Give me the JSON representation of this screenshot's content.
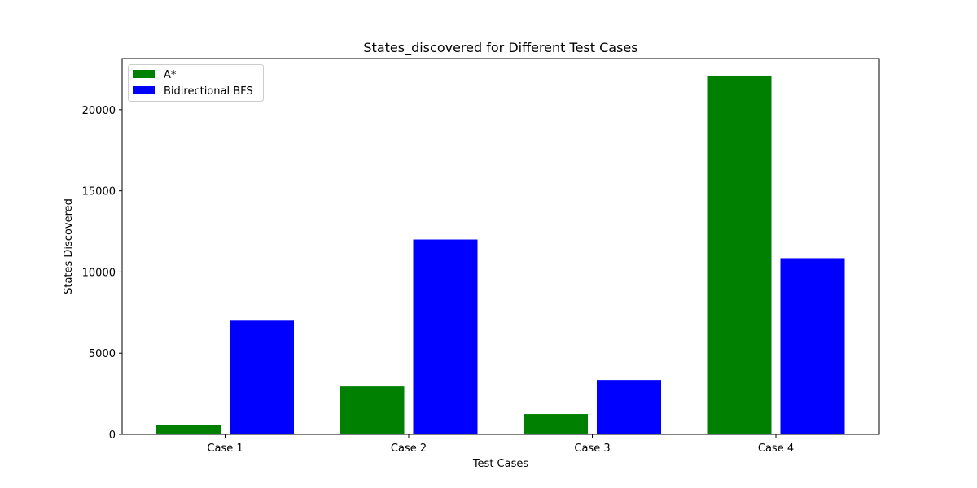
{
  "chart_data": {
    "type": "bar",
    "title": "States_discovered for Different Test Cases",
    "xlabel": "Test Cases",
    "ylabel": "States Discovered",
    "categories": [
      "Case 1",
      "Case 2",
      "Case 3",
      "Case 4"
    ],
    "series": [
      {
        "name": "A*",
        "color": "#008000",
        "values": [
          600,
          2950,
          1250,
          22100
        ]
      },
      {
        "name": "Bidirectional BFS",
        "color": "#0000ff",
        "values": [
          7000,
          12000,
          3350,
          10850
        ]
      }
    ],
    "ylim": [
      0,
      23150
    ],
    "yticks": [
      0,
      5000,
      10000,
      15000,
      20000
    ],
    "grid": false,
    "legend_position": "top-left"
  }
}
